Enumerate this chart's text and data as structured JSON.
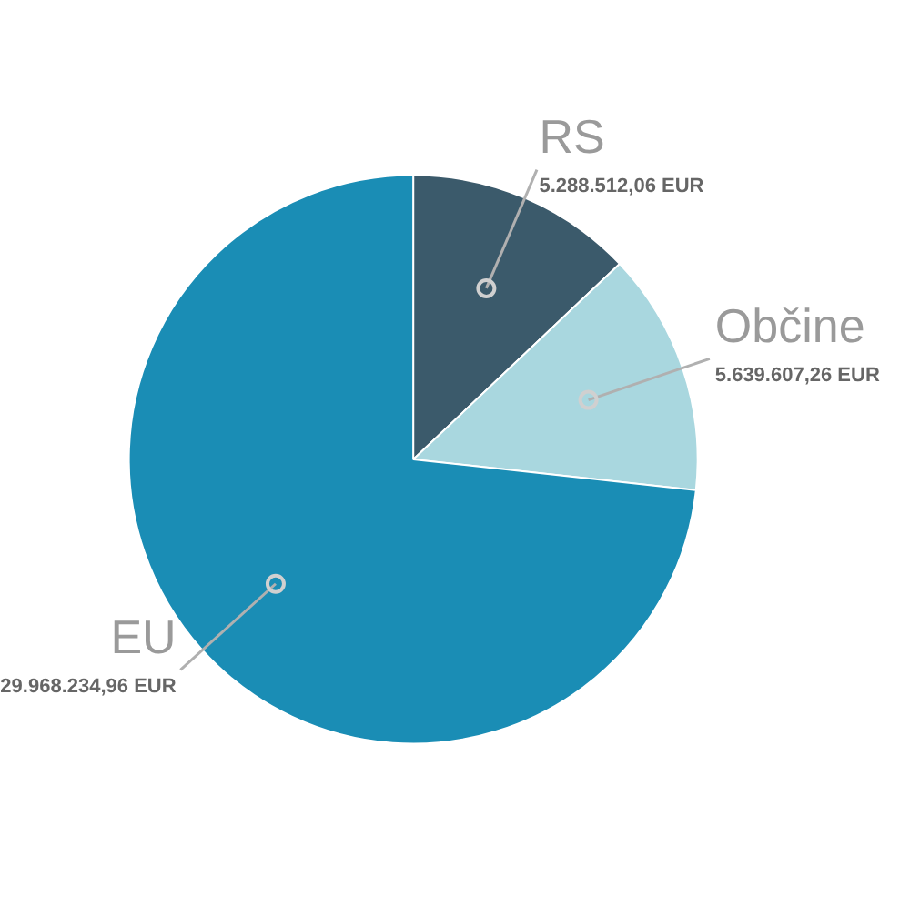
{
  "chart_data": {
    "type": "pie",
    "categories": [
      "RS",
      "Občine",
      "EU"
    ],
    "values": [
      5288512.06,
      5639607.26,
      29968234.96
    ],
    "value_labels": [
      "5.288.512,06 EUR",
      "5.639.607,26 EUR",
      "29.968.234,96 EUR"
    ],
    "colors": [
      "#3b5a6b",
      "#a9d7df",
      "#1a8db5"
    ]
  }
}
